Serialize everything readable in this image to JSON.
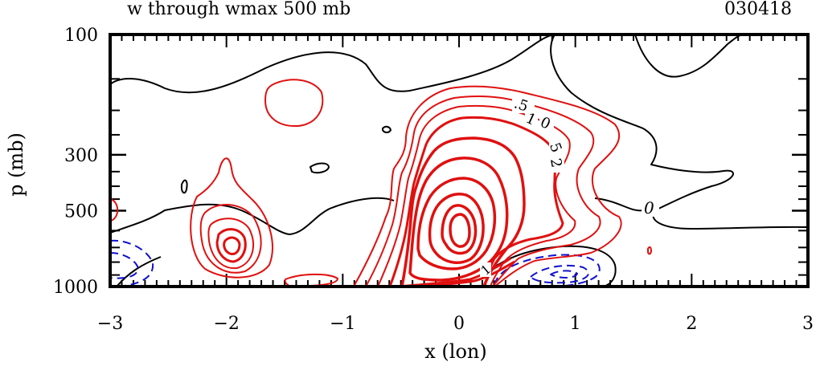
{
  "chart_data": {
    "type": "contour",
    "title": "w through wmax 500 mb",
    "date_label": "030418",
    "xlabel": "x (lon)",
    "ylabel": "p (mb)",
    "xlim": [
      -3,
      3
    ],
    "x_ticks": [
      "−3",
      "−2",
      "−1",
      "0",
      "1",
      "2",
      "3"
    ],
    "x_tick_values": [
      -3,
      -2,
      -1,
      0,
      1,
      2,
      3
    ],
    "y_axis_scale": "log",
    "ylim": [
      1000,
      100
    ],
    "y_ticks": [
      "100",
      "300",
      "500",
      "1000"
    ],
    "y_tick_values": [
      100,
      300,
      500,
      1000
    ],
    "contour_labels": [
      ".5",
      "1",
      "0",
      "5",
      "2",
      "1",
      "0"
    ],
    "colors": {
      "positive": "#e01010",
      "zero": "#000000",
      "negative": "#1010d0"
    },
    "peak_updraft": {
      "x": 0.0,
      "p": 560
    }
  }
}
